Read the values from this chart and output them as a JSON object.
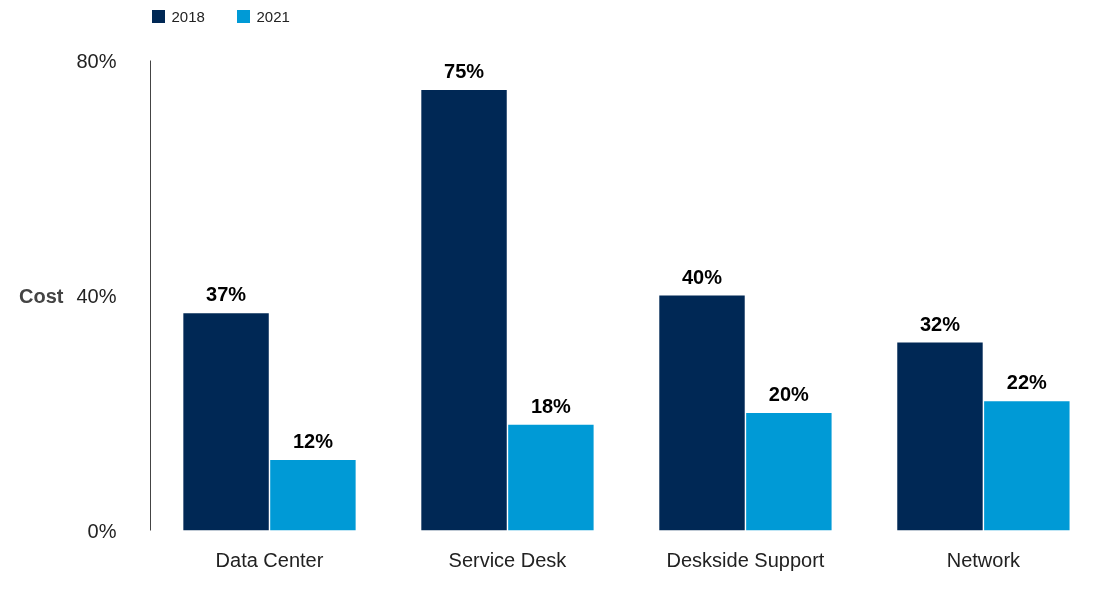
{
  "chart_data": {
    "type": "bar",
    "ylabel": "Cost",
    "categories": [
      "Data Center",
      "Service Desk",
      "Deskside Support",
      "Network"
    ],
    "series": [
      {
        "name": "2018",
        "color": "#002855",
        "values": [
          37,
          75,
          40,
          32
        ],
        "value_labels": [
          "37%",
          "75%",
          "40%",
          "32%"
        ]
      },
      {
        "name": "2021",
        "color": "#009ad6",
        "values": [
          12,
          18,
          20,
          22
        ],
        "value_labels": [
          "12%",
          "18%",
          "20%",
          "22%"
        ]
      }
    ],
    "ylim": [
      0,
      80
    ],
    "yticks": [
      {
        "value": 0,
        "label": "0%"
      },
      {
        "value": 40,
        "label": "40%"
      },
      {
        "value": 80,
        "label": "80%"
      }
    ],
    "grid": false,
    "legend": "top left"
  }
}
